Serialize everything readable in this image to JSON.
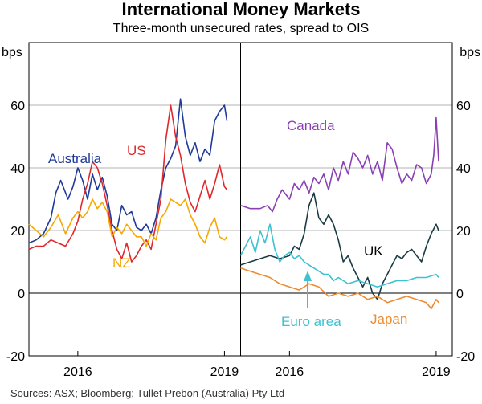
{
  "title": "International Money Markets",
  "subtitle": "Three-month unsecured rates, spread to OIS",
  "source": "Sources: ASX; Bloomberg; Tullet Prebon (Australia) Pty Ltd",
  "chart_data": [
    {
      "type": "line",
      "panel": "left",
      "ylabel": "bps",
      "ylim": [
        -20,
        80
      ],
      "yticks": [
        -20,
        0,
        20,
        40,
        60
      ],
      "xlim": [
        2015.0,
        2019.33
      ],
      "xticks": [
        {
          "value": 2016.0,
          "label": "2016"
        },
        {
          "value": 2019.0,
          "label": "2019"
        }
      ],
      "series": [
        {
          "name": "Australia",
          "color": "#1f3a99",
          "x": [
            2015.0,
            2015.15,
            2015.3,
            2015.45,
            2015.55,
            2015.65,
            2015.8,
            2015.9,
            2016.0,
            2016.1,
            2016.2,
            2016.3,
            2016.4,
            2016.5,
            2016.6,
            2016.7,
            2016.8,
            2016.9,
            2017.0,
            2017.1,
            2017.2,
            2017.3,
            2017.4,
            2017.5,
            2017.6,
            2017.7,
            2017.8,
            2017.9,
            2018.0,
            2018.1,
            2018.2,
            2018.3,
            2018.4,
            2018.5,
            2018.6,
            2018.7,
            2018.8,
            2018.9,
            2019.0,
            2019.05
          ],
          "y": [
            16,
            17,
            19,
            24,
            32,
            36,
            30,
            34,
            40,
            36,
            30,
            38,
            33,
            37,
            31,
            22,
            20,
            28,
            25,
            26,
            21,
            20,
            22,
            19,
            24,
            33,
            40,
            43,
            47,
            62,
            50,
            44,
            48,
            42,
            46,
            44,
            55,
            58,
            60,
            55
          ]
        },
        {
          "name": "US",
          "color": "#e0282c",
          "x": [
            2015.0,
            2015.15,
            2015.3,
            2015.45,
            2015.6,
            2015.75,
            2015.9,
            2016.0,
            2016.1,
            2016.2,
            2016.3,
            2016.4,
            2016.5,
            2016.6,
            2016.7,
            2016.8,
            2016.9,
            2017.0,
            2017.1,
            2017.2,
            2017.3,
            2017.4,
            2017.5,
            2017.6,
            2017.7,
            2017.8,
            2017.9,
            2018.0,
            2018.1,
            2018.2,
            2018.3,
            2018.4,
            2018.5,
            2018.6,
            2018.7,
            2018.8,
            2018.9,
            2019.0,
            2019.05
          ],
          "y": [
            14,
            15,
            15,
            17,
            16,
            15,
            19,
            23,
            30,
            35,
            42,
            40,
            35,
            28,
            20,
            14,
            11,
            16,
            10,
            12,
            15,
            17,
            14,
            22,
            30,
            49,
            60,
            50,
            44,
            35,
            29,
            26,
            31,
            36,
            30,
            35,
            41,
            34,
            33
          ]
        },
        {
          "name": "NZ",
          "color": "#f6a800",
          "x": [
            2015.0,
            2015.15,
            2015.3,
            2015.45,
            2015.6,
            2015.75,
            2015.9,
            2016.0,
            2016.1,
            2016.2,
            2016.3,
            2016.4,
            2016.5,
            2016.6,
            2016.7,
            2016.8,
            2016.9,
            2017.0,
            2017.1,
            2017.2,
            2017.3,
            2017.4,
            2017.5,
            2017.6,
            2017.7,
            2017.8,
            2017.9,
            2018.0,
            2018.1,
            2018.2,
            2018.3,
            2018.4,
            2018.5,
            2018.6,
            2018.7,
            2018.8,
            2018.9,
            2019.0,
            2019.05
          ],
          "y": [
            22,
            20,
            18,
            21,
            25,
            19,
            24,
            26,
            24,
            26,
            30,
            27,
            29,
            26,
            18,
            21,
            19,
            22,
            20,
            18,
            18,
            15,
            19,
            17,
            24,
            26,
            30,
            29,
            28,
            30,
            25,
            22,
            18,
            16,
            21,
            24,
            18,
            17,
            18
          ]
        }
      ]
    },
    {
      "type": "line",
      "panel": "right",
      "ylabel": "bps",
      "ylim": [
        -20,
        80
      ],
      "yticks": [
        -20,
        0,
        20,
        40,
        60
      ],
      "xlim": [
        2015.0,
        2019.33
      ],
      "xticks": [
        {
          "value": 2016.0,
          "label": "2016"
        },
        {
          "value": 2019.0,
          "label": "2019"
        }
      ],
      "series": [
        {
          "name": "Canada",
          "color": "#8a3fb4",
          "x": [
            2015.0,
            2015.2,
            2015.4,
            2015.55,
            2015.65,
            2015.75,
            2015.85,
            2016.0,
            2016.1,
            2016.2,
            2016.3,
            2016.4,
            2016.5,
            2016.6,
            2016.7,
            2016.8,
            2016.9,
            2017.0,
            2017.1,
            2017.2,
            2017.3,
            2017.4,
            2017.5,
            2017.6,
            2017.7,
            2017.8,
            2017.9,
            2018.0,
            2018.1,
            2018.2,
            2018.3,
            2018.4,
            2018.5,
            2018.6,
            2018.7,
            2018.8,
            2018.9,
            2018.95,
            2019.0,
            2019.05
          ],
          "y": [
            28,
            27,
            27,
            28,
            26,
            30,
            33,
            30,
            35,
            33,
            36,
            32,
            37,
            35,
            38,
            33,
            40,
            36,
            42,
            38,
            45,
            43,
            40,
            44,
            38,
            42,
            36,
            48,
            46,
            40,
            35,
            38,
            36,
            41,
            40,
            35,
            38,
            44,
            56,
            42
          ]
        },
        {
          "name": "UK",
          "color": "#1a3a44",
          "x": [
            2015.0,
            2015.2,
            2015.4,
            2015.6,
            2015.8,
            2016.0,
            2016.1,
            2016.2,
            2016.3,
            2016.4,
            2016.5,
            2016.6,
            2016.7,
            2016.8,
            2016.9,
            2017.0,
            2017.1,
            2017.2,
            2017.3,
            2017.4,
            2017.5,
            2017.6,
            2017.7,
            2017.8,
            2017.9,
            2018.0,
            2018.1,
            2018.2,
            2018.3,
            2018.4,
            2018.5,
            2018.6,
            2018.7,
            2018.8,
            2018.9,
            2019.0,
            2019.05
          ],
          "y": [
            9,
            10,
            11,
            12,
            11,
            12,
            15,
            14,
            19,
            28,
            32,
            24,
            22,
            25,
            22,
            17,
            10,
            12,
            8,
            5,
            2,
            5,
            0,
            -2,
            3,
            6,
            9,
            12,
            11,
            13,
            14,
            12,
            10,
            15,
            19,
            22,
            20
          ]
        },
        {
          "name": "Euro area",
          "color": "#3ec1d0",
          "x": [
            2015.0,
            2015.1,
            2015.2,
            2015.3,
            2015.4,
            2015.5,
            2015.6,
            2015.7,
            2015.8,
            2015.9,
            2016.0,
            2016.1,
            2016.2,
            2016.3,
            2016.4,
            2016.5,
            2016.6,
            2016.7,
            2016.8,
            2016.9,
            2017.0,
            2017.2,
            2017.4,
            2017.6,
            2017.8,
            2018.0,
            2018.2,
            2018.4,
            2018.6,
            2018.8,
            2019.0,
            2019.05
          ],
          "y": [
            12,
            15,
            18,
            13,
            20,
            16,
            22,
            14,
            10,
            12,
            13,
            11,
            12,
            10,
            9,
            8,
            7,
            6,
            6,
            4,
            5,
            3,
            4,
            3,
            2,
            3,
            4,
            4,
            5,
            5,
            6,
            5
          ]
        },
        {
          "name": "Japan",
          "color": "#ef8a2f",
          "x": [
            2015.0,
            2015.2,
            2015.4,
            2015.6,
            2015.8,
            2016.0,
            2016.2,
            2016.4,
            2016.6,
            2016.8,
            2017.0,
            2017.2,
            2017.4,
            2017.6,
            2017.8,
            2018.0,
            2018.2,
            2018.4,
            2018.6,
            2018.8,
            2018.9,
            2019.0,
            2019.05
          ],
          "y": [
            8,
            7,
            6,
            5,
            3,
            2,
            1,
            3,
            2,
            -1,
            0,
            -1,
            0,
            -2,
            -1,
            -3,
            -2,
            -1,
            -2,
            -3,
            -5,
            -2,
            -3
          ]
        }
      ]
    }
  ],
  "labels": {
    "australia": "Australia",
    "us": "US",
    "nz": "NZ",
    "canada": "Canada",
    "uk": "UK",
    "euro": "Euro area",
    "japan": "Japan"
  },
  "colors": {
    "australia": "#1f3a99",
    "us": "#e0282c",
    "nz": "#f6a800",
    "canada": "#8a3fb4",
    "uk": "#1a3a44",
    "euro": "#3ec1d0",
    "japan": "#ef8a2f"
  }
}
